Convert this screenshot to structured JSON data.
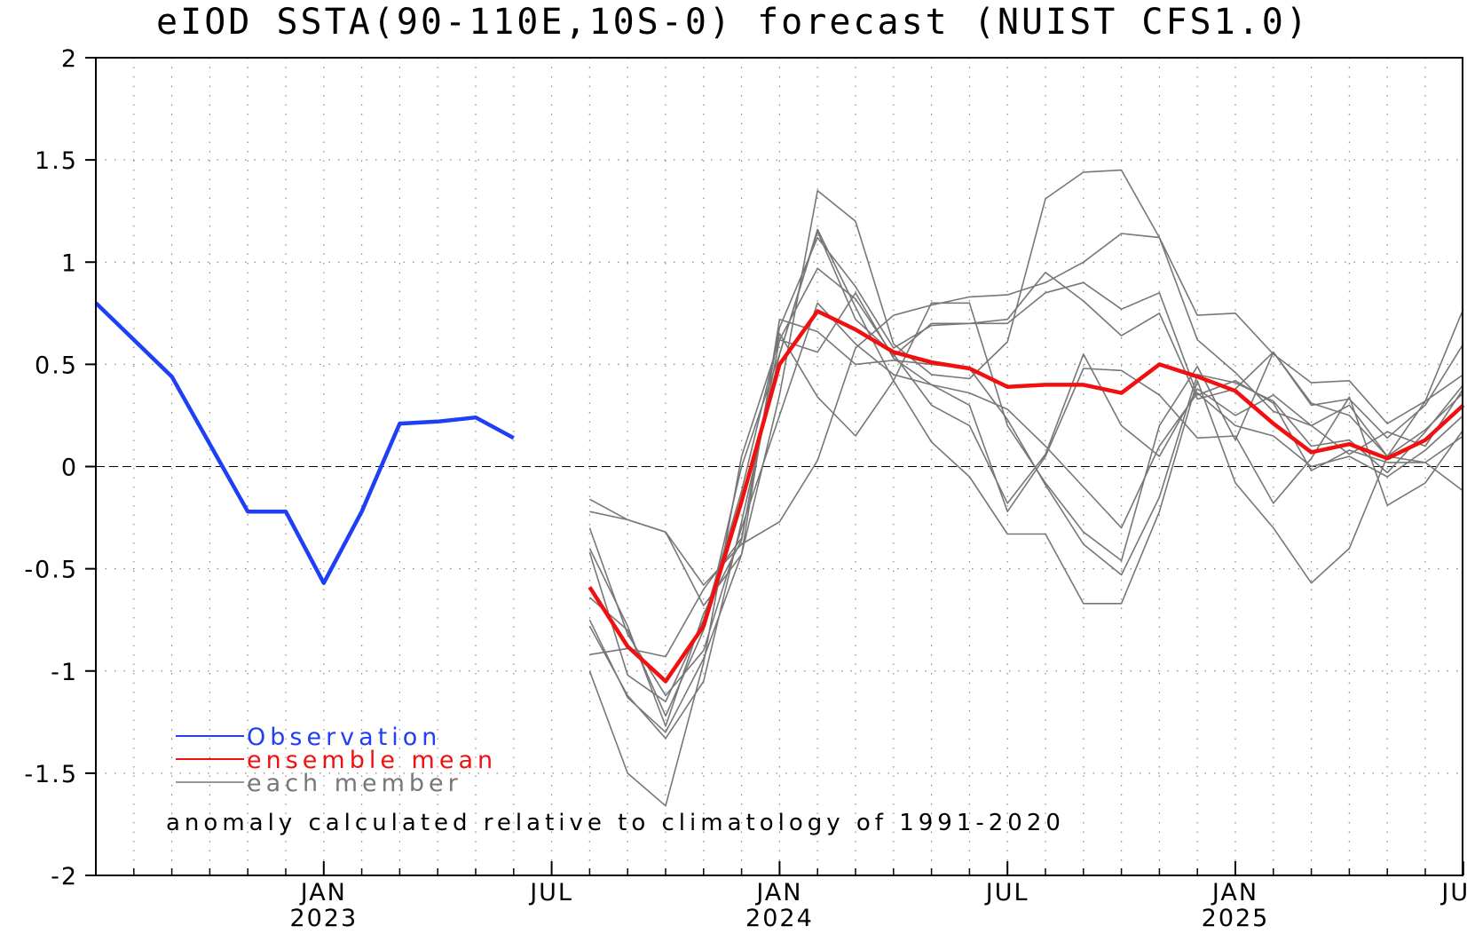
{
  "chart_data": {
    "type": "line",
    "title": "eIOD SSTA(90-110E,10S-0) forecast (NUIST CFS1.0)",
    "xlabel": "",
    "ylabel": "",
    "ylim": [
      -2,
      2
    ],
    "yticks": [
      "2",
      "1.5",
      "1",
      "0.5",
      "0",
      "-0.5",
      "-1",
      "-1.5",
      "-2"
    ],
    "ytick_values": [
      2,
      1.5,
      1,
      0.5,
      0,
      -0.5,
      -1,
      -1.5,
      -2
    ],
    "xlim": [
      "2022-07",
      "2025-07"
    ],
    "grid": true,
    "zero_line": true,
    "xticks": [
      {
        "month": "2023-01",
        "label": "JAN",
        "year": "2023"
      },
      {
        "month": "2023-07",
        "label": "JUL",
        "year": ""
      },
      {
        "month": "2024-01",
        "label": "JAN",
        "year": "2024"
      },
      {
        "month": "2024-07",
        "label": "JUL",
        "year": ""
      },
      {
        "month": "2025-01",
        "label": "JAN",
        "year": "2025"
      },
      {
        "month": "2025-07",
        "label": "JUL",
        "year": ""
      }
    ],
    "legend": {
      "placement": "bottom-left",
      "entries": [
        {
          "label": "Observation",
          "color": "#1f3ff5"
        },
        {
          "label": "ensemble mean",
          "color": "#f01010"
        },
        {
          "label": "each member",
          "color": "#777777"
        }
      ]
    },
    "note": "anomaly calculated relative to climatology of 1991-2020",
    "series": [
      {
        "name": "Observation",
        "color": "#1f3ff5",
        "x": [
          "2022-07",
          "2022-08",
          "2022-09",
          "2022-10",
          "2022-11",
          "2022-12",
          "2023-01",
          "2023-02",
          "2023-03",
          "2023-04",
          "2023-05",
          "2023-06",
          "2023-07"
        ],
        "values": [
          0.8,
          0.62,
          0.44,
          0.11,
          -0.22,
          -0.22,
          -0.57,
          -0.22,
          0.21,
          0.22,
          0.24,
          0.14,
          null
        ]
      },
      {
        "name": "ensemble mean",
        "color": "#f01010",
        "x": [
          "2023-08",
          "2023-09",
          "2023-10",
          "2023-11",
          "2023-12",
          "2024-01",
          "2024-02",
          "2024-03",
          "2024-04",
          "2024-05",
          "2024-06",
          "2024-07",
          "2024-08",
          "2024-09",
          "2024-10",
          "2024-11",
          "2024-12",
          "2025-01",
          "2025-02",
          "2025-03",
          "2025-04",
          "2025-05",
          "2025-06",
          "2025-07"
        ],
        "values": [
          -0.59,
          -0.88,
          -1.05,
          -0.78,
          -0.17,
          0.5,
          0.76,
          0.67,
          0.56,
          0.51,
          0.48,
          0.39,
          0.4,
          0.4,
          0.36,
          0.5,
          0.44,
          0.37,
          0.21,
          0.07,
          0.11,
          0.04,
          0.13,
          0.3
        ]
      },
      {
        "name": "",
        "color": "#777777",
        "x_start": "2023-08",
        "values": [
          -0.16,
          -0.26,
          -0.32,
          -0.58,
          -0.38,
          -0.27,
          0.03,
          0.58,
          0.74,
          0.79,
          0.83,
          0.84,
          0.9,
          1.0,
          1.14,
          1.12,
          0.74,
          0.75,
          0.55,
          0.41,
          0.42,
          0.21,
          0.32,
          0.77
        ]
      },
      {
        "name": "",
        "color": "#777777",
        "x_start": "2023-08",
        "values": [
          -0.22,
          -0.26,
          -0.32,
          -0.68,
          -0.43,
          0.35,
          1.35,
          1.2,
          0.6,
          0.45,
          0.43,
          0.61,
          1.31,
          1.44,
          1.45,
          1.12,
          0.62,
          0.46,
          0.27,
          0.2,
          0.3,
          0.05,
          0.32,
          0.45
        ]
      },
      {
        "name": "",
        "color": "#777777",
        "x_start": "2023-08",
        "values": [
          -0.4,
          -0.78,
          -1.27,
          -0.72,
          -0.36,
          0.68,
          1.12,
          0.88,
          0.58,
          0.69,
          0.7,
          0.72,
          0.95,
          0.81,
          0.64,
          0.75,
          0.33,
          0.38,
          0.56,
          0.31,
          0.25,
          0.05,
          0.02,
          0.15
        ]
      },
      {
        "name": "",
        "color": "#777777",
        "x_start": "2023-08",
        "values": [
          -0.75,
          -1.13,
          -1.3,
          -0.94,
          -0.43,
          0.72,
          0.66,
          0.5,
          0.52,
          0.5,
          0.48,
          0.23,
          -0.09,
          -0.38,
          -0.53,
          -0.15,
          0.45,
          0.41,
          0.32,
          0.1,
          0.13,
          -0.03,
          0.17,
          0.4
        ]
      },
      {
        "name": "",
        "color": "#777777",
        "x_start": "2023-08",
        "values": [
          -0.92,
          -0.89,
          -0.93,
          -0.6,
          -0.35,
          0.62,
          0.97,
          0.82,
          0.54,
          0.7,
          0.7,
          0.7,
          0.85,
          0.9,
          0.77,
          0.85,
          0.35,
          0.42,
          0.31,
          -0.02,
          0.08,
          0.02,
          0.02,
          -0.12
        ]
      },
      {
        "name": "",
        "color": "#777777",
        "x_start": "2023-08",
        "values": [
          -1.0,
          -1.5,
          -1.66,
          -0.96,
          0.05,
          0.62,
          0.56,
          0.85,
          0.53,
          0.4,
          0.3,
          -0.22,
          0.05,
          0.48,
          0.47,
          0.35,
          0.14,
          0.15,
          -0.18,
          0.04,
          0.34,
          -0.19,
          -0.08,
          0.18
        ]
      },
      {
        "name": "",
        "color": "#777777",
        "x_start": "2023-08",
        "values": [
          -0.42,
          -1.02,
          -1.15,
          -0.75,
          -0.12,
          0.65,
          0.34,
          0.15,
          0.42,
          0.12,
          -0.05,
          -0.33,
          -0.33,
          -0.67,
          -0.67,
          -0.22,
          0.42,
          -0.08,
          -0.3,
          -0.57,
          -0.4,
          0.05,
          0.18,
          0.36
        ]
      },
      {
        "name": "",
        "color": "#777777",
        "x_start": "2023-08",
        "values": [
          -0.78,
          -1.12,
          -1.33,
          -1.05,
          -0.27,
          0.55,
          1.16,
          0.78,
          0.42,
          0.8,
          0.8,
          0.2,
          -0.08,
          -0.32,
          -0.46,
          0.2,
          0.49,
          0.13,
          0.56,
          0.3,
          0.33,
          0.14,
          0.3,
          0.6
        ]
      },
      {
        "name": "",
        "color": "#777777",
        "x_start": "2023-08",
        "values": [
          -0.64,
          -0.8,
          -1.22,
          -0.8,
          0.0,
          0.55,
          1.15,
          0.72,
          0.55,
          0.3,
          0.2,
          -0.18,
          0.06,
          0.55,
          0.2,
          0.05,
          0.38,
          0.25,
          0.35,
          0.2,
          0.06,
          0.17,
          0.1,
          0.38
        ]
      },
      {
        "name": "",
        "color": "#777777",
        "x_start": "2023-08",
        "values": [
          -0.3,
          -0.82,
          -1.12,
          -0.9,
          -0.3,
          0.25,
          0.8,
          0.6,
          0.45,
          0.4,
          0.36,
          0.28,
          0.1,
          -0.1,
          -0.3,
          0.1,
          0.36,
          0.2,
          0.15,
          0.0,
          0.05,
          -0.05,
          0.08,
          0.25
        ]
      }
    ]
  }
}
